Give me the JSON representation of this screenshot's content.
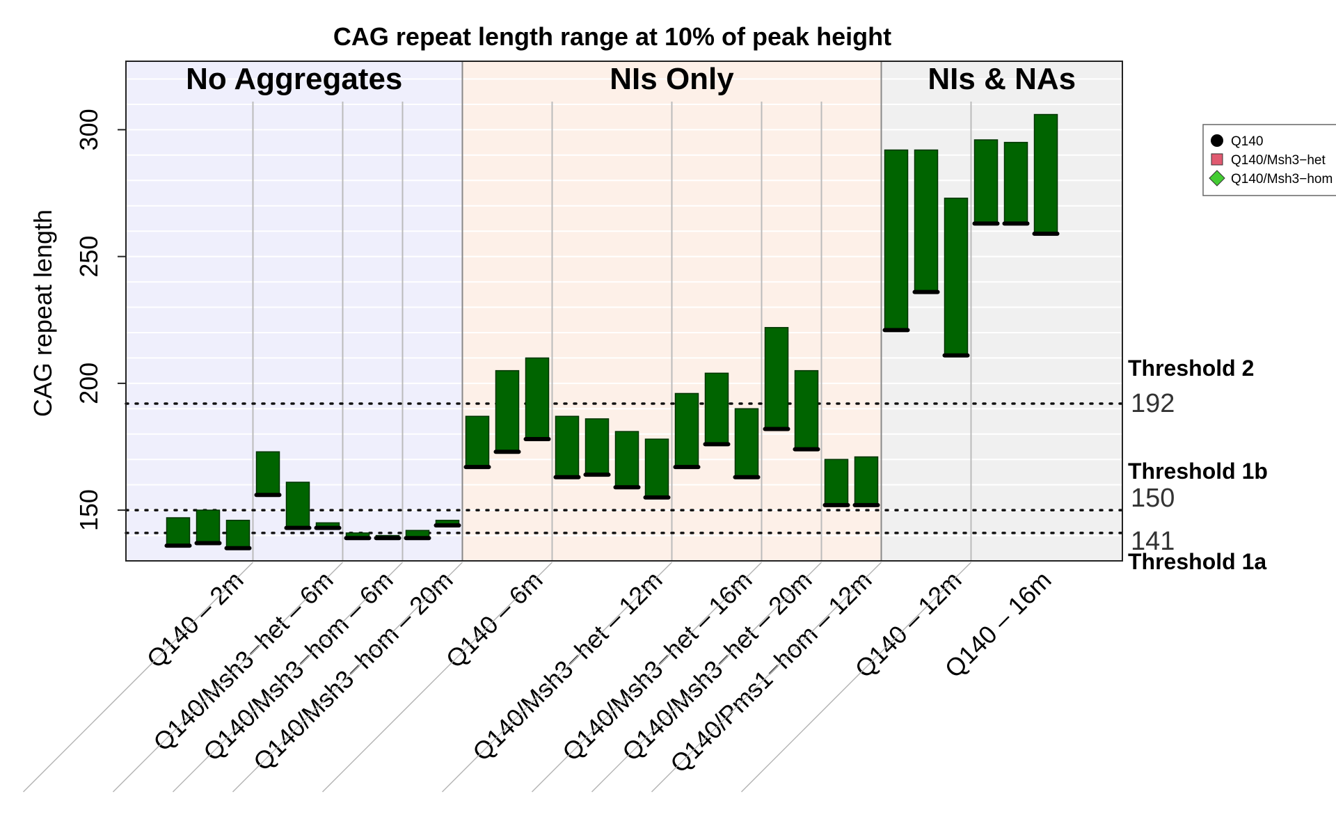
{
  "chart_data": {
    "type": "bar",
    "title": "CAG repeat length range at 10% of peak height",
    "ylabel": "CAG repeat length",
    "xlabel": "",
    "ylim": [
      130,
      327
    ],
    "yticks": [
      150,
      200,
      250,
      300
    ],
    "grid": true,
    "panels": [
      {
        "label": "No Aggregates",
        "background": "#EFEFFC"
      },
      {
        "label": "NIs Only",
        "background": "#FDF0E8"
      },
      {
        "label": "NIs & NAs",
        "background": "#F0F0F0"
      }
    ],
    "groups": [
      {
        "label": "Q140 – 2m",
        "panel": 0,
        "bars": [
          {
            "low": 136,
            "high": 147
          },
          {
            "low": 137,
            "high": 150
          },
          {
            "low": 135,
            "high": 146
          }
        ]
      },
      {
        "label": "Q140/Msh3−het – 6m",
        "panel": 0,
        "bars": [
          {
            "low": 156,
            "high": 173
          },
          {
            "low": 143,
            "high": 161
          },
          {
            "low": 143,
            "high": 145
          }
        ]
      },
      {
        "label": "Q140/Msh3−hom – 6m",
        "panel": 0,
        "bars": [
          {
            "low": 139,
            "high": 141
          },
          {
            "low": 139,
            "high": 140
          }
        ]
      },
      {
        "label": "Q140/Msh3−hom – 20m",
        "panel": 0,
        "bars": [
          {
            "low": 139,
            "high": 142
          },
          {
            "low": 144,
            "high": 146
          }
        ]
      },
      {
        "label": "Q140 – 6m",
        "panel": 1,
        "bars": [
          {
            "low": 167,
            "high": 187
          },
          {
            "low": 173,
            "high": 205
          },
          {
            "low": 178,
            "high": 210
          }
        ]
      },
      {
        "label": "Q140/Msh3−het – 12m",
        "panel": 1,
        "bars": [
          {
            "low": 163,
            "high": 187
          },
          {
            "low": 164,
            "high": 186
          },
          {
            "low": 159,
            "high": 181
          },
          {
            "low": 155,
            "high": 178
          }
        ]
      },
      {
        "label": "Q140/Msh3−het – 16m",
        "panel": 1,
        "bars": [
          {
            "low": 167,
            "high": 196
          },
          {
            "low": 176,
            "high": 204
          },
          {
            "low": 163,
            "high": 190
          }
        ]
      },
      {
        "label": "Q140/Msh3−het – 20m",
        "panel": 1,
        "bars": [
          {
            "low": 182,
            "high": 222
          },
          {
            "low": 174,
            "high": 205
          }
        ]
      },
      {
        "label": "Q140/Pms1−hom – 12m",
        "panel": 1,
        "bars": [
          {
            "low": 152,
            "high": 170
          },
          {
            "low": 152,
            "high": 171
          }
        ]
      },
      {
        "label": "Q140 – 12m",
        "panel": 2,
        "bars": [
          {
            "low": 221,
            "high": 292
          },
          {
            "low": 236,
            "high": 292
          },
          {
            "low": 211,
            "high": 273
          }
        ]
      },
      {
        "label": "Q140 – 16m",
        "panel": 2,
        "bars": [
          {
            "low": 263,
            "high": 296
          },
          {
            "low": 263,
            "high": 295
          },
          {
            "low": 259,
            "high": 306
          }
        ]
      }
    ],
    "bar_color": "#006400",
    "thresholds": [
      {
        "name": "Threshold 2",
        "value": 192,
        "value_label": "192"
      },
      {
        "name": "Threshold 1b",
        "value": 150,
        "value_label": "150"
      },
      {
        "name": "Threshold 1a",
        "value": 141,
        "value_label": "141"
      }
    ],
    "legend": {
      "placement": "right",
      "entries": [
        {
          "label": "Q140",
          "marker": "circle",
          "color": "#000000"
        },
        {
          "label": "Q140/Msh3−het",
          "marker": "square",
          "color": "#E05A70"
        },
        {
          "label": "Q140/Msh3−hom",
          "marker": "diamond",
          "color": "#44CC33"
        }
      ]
    }
  }
}
